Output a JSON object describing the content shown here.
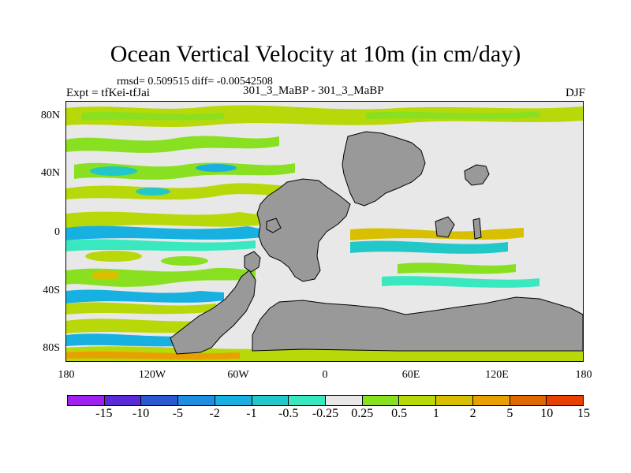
{
  "title": "Ocean Vertical Velocity at 10m (in cm/day)",
  "stats": "rmsd= 0.509515 diff= -0.00542508",
  "experiment": "Expt = tfKei-tfJai",
  "period": "301_3_MaBP - 301_3_MaBP",
  "season": "DJF",
  "lat_labels": [
    "80N",
    "40N",
    "0",
    "40S",
    "80S"
  ],
  "lon_labels": [
    "180",
    "120W",
    "60W",
    "0",
    "60E",
    "120E",
    "180"
  ],
  "colorbar": {
    "colors": [
      "#a020f0",
      "#5a2ad8",
      "#2a5ad2",
      "#1e8ee0",
      "#18b0e0",
      "#22c8c8",
      "#3ae8c0",
      "#e8e8e8",
      "#88e020",
      "#b8d80a",
      "#d8c000",
      "#e8a000",
      "#e06800",
      "#e84000"
    ],
    "labels": [
      "-15",
      "-10",
      "-5",
      "-2",
      "-1",
      "-0.5",
      "-0.25",
      "0.25",
      "0.5",
      "1",
      "2",
      "5",
      "10",
      "15"
    ]
  },
  "land_color": "#999999"
}
